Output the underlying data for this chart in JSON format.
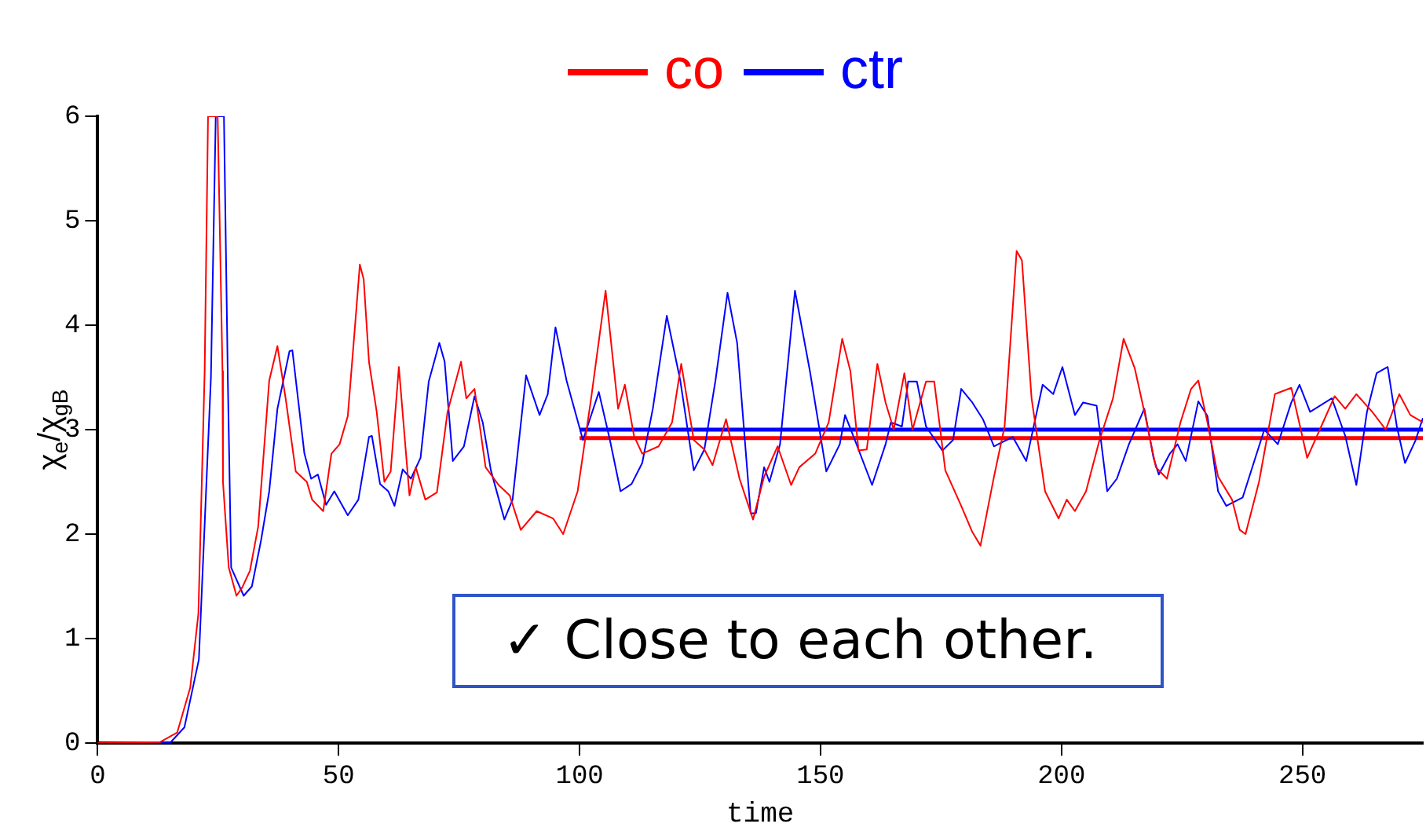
{
  "chart_data": {
    "type": "line",
    "xlabel": "time",
    "ylabel": "χ$_{e}$/χ$_{gB}$",
    "xlim": [
      0,
      275
    ],
    "ylim": [
      0,
      6
    ],
    "xticks": [
      0,
      50,
      100,
      150,
      200,
      250
    ],
    "yticks": [
      0,
      1,
      2,
      3,
      4,
      5,
      6
    ],
    "grid": false,
    "legend": "top",
    "marker": "none",
    "line_style": "solid",
    "annotations": [
      "✓ Close to each other."
    ],
    "series": [
      {
        "name": "co",
        "color": "#ff0000",
        "x": [
          0,
          13,
          16.5,
          19.2,
          20.9,
          22.2,
          22.9,
          24.9,
          25.9,
          26,
          27.2,
          28.8,
          30,
          31.6,
          33.3,
          35.6,
          37.3,
          39,
          41.1,
          43.4,
          44.5,
          46.8,
          48.5,
          50.2,
          51.9,
          53.5,
          54.4,
          55.2,
          56.3,
          57.9,
          59.5,
          60.8,
          62.5,
          64.7,
          66,
          68,
          70.4,
          72.6,
          75.4,
          76.5,
          78.2,
          80.5,
          83.2,
          85.5,
          87.8,
          91.1,
          94.5,
          96.6,
          99.6,
          102.4,
          105.4,
          108,
          109.4,
          111.3,
          113,
          116.4,
          119.2,
          121.1,
          123.7,
          125.9,
          127.6,
          130.4,
          133.2,
          136,
          138.3,
          141.1,
          143.9,
          145.6,
          148.9,
          151.7,
          154.5,
          156.2,
          157.9,
          159.6,
          161.8,
          163.5,
          165.2,
          167.4,
          169.1,
          171.9,
          173.6,
          175.9,
          179.2,
          181.5,
          183.2,
          186,
          188.2,
          190.7,
          191.8,
          193.8,
          196.6,
          199.4,
          201.1,
          202.8,
          205.1,
          207.9,
          210.7,
          212.9,
          215.2,
          217.4,
          219.6,
          221.9,
          224.7,
          226.9,
          228.4,
          230.3,
          232.5,
          235.4,
          237,
          238.2,
          241,
          244.3,
          247.7,
          251,
          253.9,
          256.7,
          258.9,
          261.2,
          264.5,
          267.3,
          270.1,
          272.4,
          275
        ],
        "values": [
          0,
          0.01,
          0.1,
          0.53,
          1.24,
          3.56,
          6,
          6,
          3.56,
          2.5,
          1.68,
          1.41,
          1.49,
          1.65,
          2.07,
          3.47,
          3.8,
          3.3,
          2.6,
          2.5,
          2.33,
          2.22,
          2.77,
          2.86,
          3.13,
          4.05,
          4.58,
          4.44,
          3.65,
          3.17,
          2.5,
          2.6,
          3.6,
          2.37,
          2.64,
          2.33,
          2.4,
          3.17,
          3.65,
          3.3,
          3.39,
          2.64,
          2.47,
          2.37,
          2.04,
          2.22,
          2.15,
          2.0,
          2.41,
          3.3,
          4.33,
          3.2,
          3.43,
          2.94,
          2.77,
          2.84,
          3.07,
          3.63,
          2.9,
          2.81,
          2.66,
          3.1,
          2.53,
          2.14,
          2.55,
          2.84,
          2.47,
          2.64,
          2.77,
          3.07,
          3.87,
          3.56,
          2.8,
          2.81,
          3.63,
          3.26,
          3.0,
          3.54,
          3.0,
          3.46,
          3.46,
          2.61,
          2.27,
          2.02,
          1.89,
          2.55,
          3.03,
          4.71,
          4.62,
          3.3,
          2.41,
          2.15,
          2.33,
          2.22,
          2.41,
          2.9,
          3.3,
          3.87,
          3.59,
          3.13,
          2.64,
          2.53,
          3.07,
          3.39,
          3.47,
          3.07,
          2.55,
          2.33,
          2.04,
          2.0,
          2.5,
          3.34,
          3.4,
          2.73,
          3.03,
          3.32,
          3.2,
          3.34,
          3.17,
          3.0,
          3.34,
          3.14,
          3.07
        ]
      },
      {
        "name": "ctr",
        "color": "#0000ff",
        "x": [
          0,
          15,
          18,
          21,
          23.5,
          24.5,
          26.2,
          27,
          27.7,
          30.3,
          32,
          33.9,
          35.6,
          37.3,
          39.8,
          40.4,
          42.9,
          44.3,
          45.7,
          47.4,
          49.1,
          51.9,
          54.1,
          56.3,
          56.9,
          58.6,
          60.3,
          61.6,
          63.3,
          65,
          67,
          68.7,
          70.9,
          72,
          73.7,
          76,
          78.2,
          79.9,
          81.6,
          84.4,
          86.1,
          88.9,
          91.7,
          93.4,
          95,
          97.3,
          100.7,
          104,
          106.3,
          108.5,
          110.8,
          113,
          115.2,
          118.1,
          120.9,
          123.7,
          125.9,
          128.2,
          130.7,
          132.7,
          135.5,
          136.6,
          138.3,
          139.4,
          141.6,
          144.7,
          147.8,
          151.2,
          154,
          155.1,
          157.3,
          160.7,
          163.5,
          164.6,
          166.9,
          168.2,
          170,
          171.9,
          175.3,
          177.5,
          179.2,
          181.5,
          183.7,
          186,
          189.9,
          192.7,
          196.1,
          198.3,
          200.2,
          202.8,
          204.5,
          207.3,
          209.5,
          211.5,
          214,
          217.2,
          219.1,
          220.2,
          222.5,
          224.1,
          225.8,
          228.4,
          230.3,
          232.5,
          234.2,
          237.6,
          242.1,
          244.9,
          247.7,
          249.4,
          251.6,
          256.1,
          258.9,
          261.2,
          263.4,
          265.4,
          267.7,
          269.6,
          271.3,
          273.5,
          275
        ],
        "values": [
          0,
          0,
          0.15,
          0.8,
          3.5,
          6,
          6,
          3.5,
          1.68,
          1.41,
          1.5,
          1.94,
          2.41,
          3.2,
          3.75,
          3.76,
          2.77,
          2.53,
          2.57,
          2.28,
          2.41,
          2.18,
          2.33,
          2.93,
          2.94,
          2.48,
          2.41,
          2.27,
          2.62,
          2.53,
          2.73,
          3.46,
          3.83,
          3.65,
          2.7,
          2.84,
          3.32,
          3.07,
          2.61,
          2.14,
          2.33,
          3.52,
          3.14,
          3.34,
          3.98,
          3.47,
          2.9,
          3.36,
          2.9,
          2.41,
          2.48,
          2.68,
          3.2,
          4.09,
          3.47,
          2.61,
          2.81,
          3.47,
          4.31,
          3.83,
          2.2,
          2.2,
          2.64,
          2.5,
          2.86,
          4.33,
          3.56,
          2.6,
          2.86,
          3.14,
          2.88,
          2.47,
          2.86,
          3.07,
          3.03,
          3.46,
          3.46,
          3.03,
          2.8,
          2.9,
          3.39,
          3.26,
          3.1,
          2.84,
          2.93,
          2.7,
          3.43,
          3.34,
          3.6,
          3.14,
          3.26,
          3.23,
          2.41,
          2.53,
          2.86,
          3.2,
          2.73,
          2.57,
          2.77,
          2.86,
          2.7,
          3.27,
          3.13,
          2.41,
          2.27,
          2.35,
          3.0,
          2.86,
          3.26,
          3.43,
          3.17,
          3.3,
          2.94,
          2.47,
          3.17,
          3.54,
          3.6,
          3.03,
          2.68,
          2.9,
          3.11
        ]
      },
      {
        "color": "#0000ff",
        "x": [
          100,
          275
        ],
        "values": [
          3.0,
          3.0
        ]
      },
      {
        "color": "#ff0000",
        "x": [
          100,
          275
        ],
        "values": [
          2.92,
          2.92
        ]
      }
    ]
  }
}
